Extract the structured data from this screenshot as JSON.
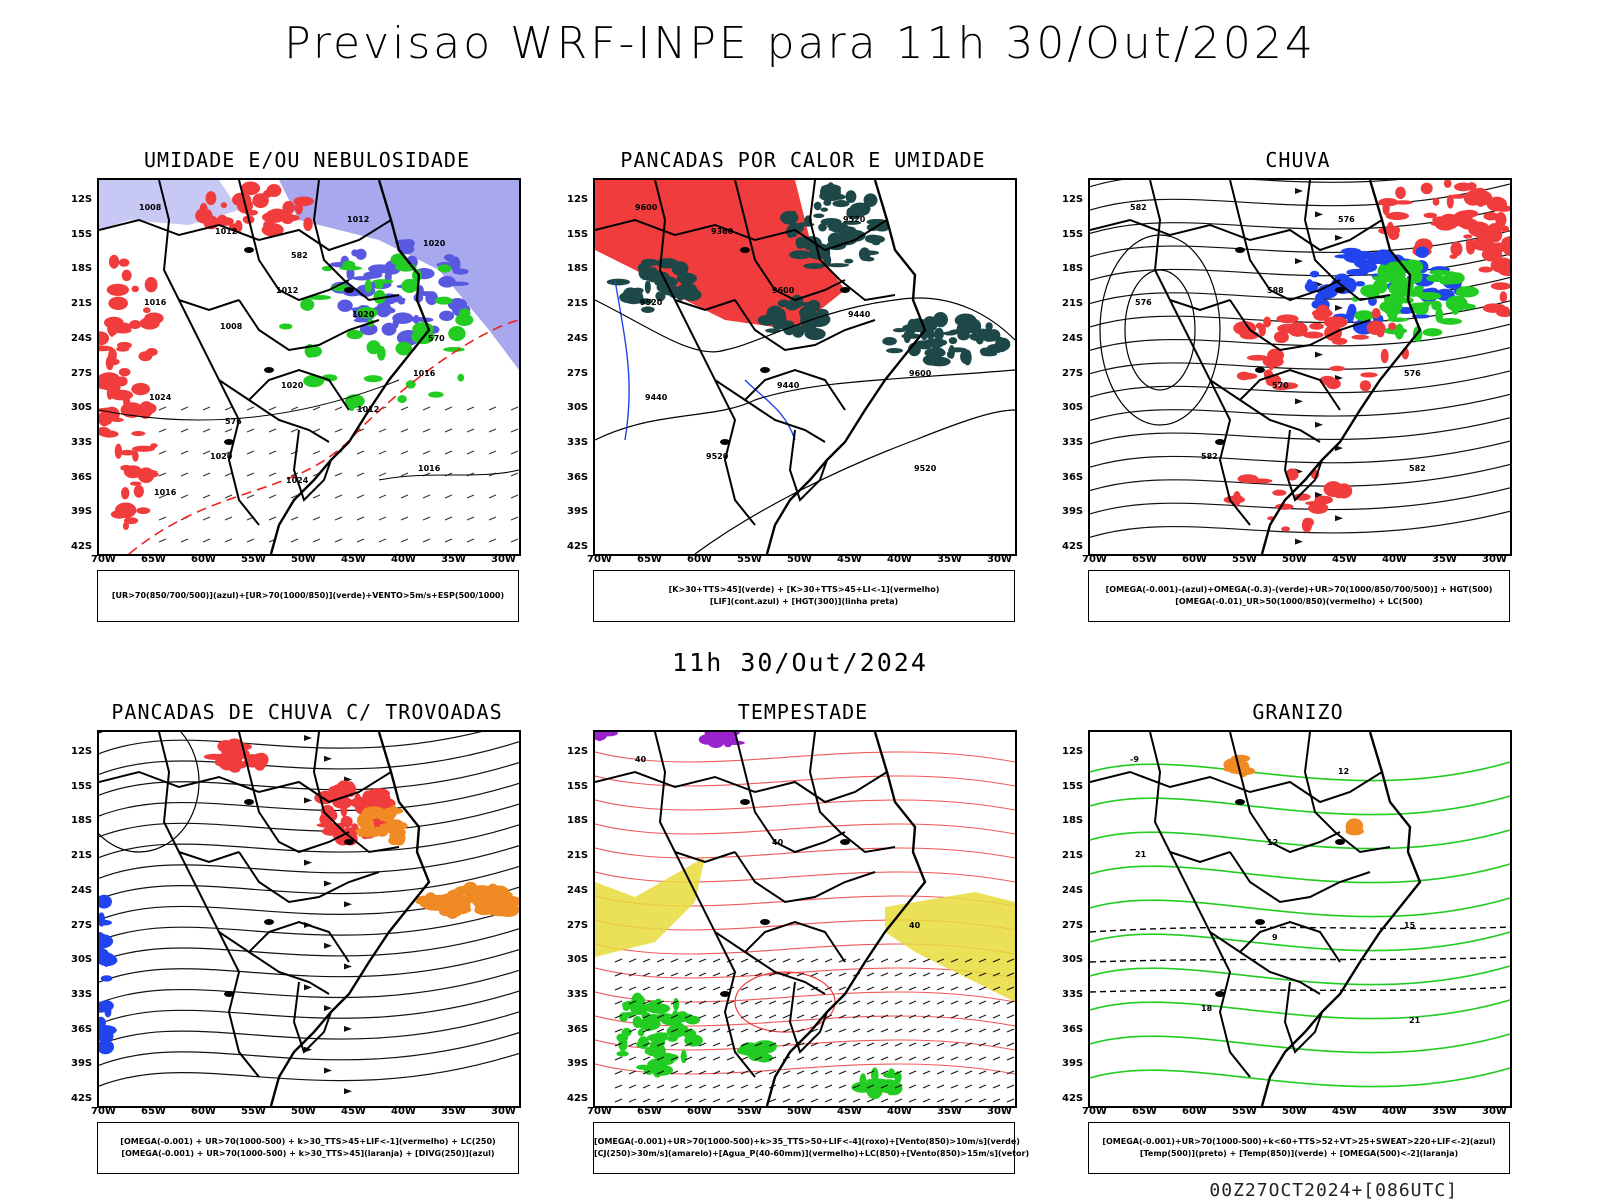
{
  "page": {
    "title": "Previsao WRF-INPE  para 11h 30/Out/2024",
    "mid_title": "11h 30/Out/2024",
    "footer": "00Z27OCT2024+[086UTC]"
  },
  "axes": {
    "lat_labels": [
      "12S",
      "15S",
      "18S",
      "21S",
      "24S",
      "27S",
      "30S",
      "33S",
      "36S",
      "39S",
      "42S"
    ],
    "lon_labels": [
      "70W",
      "65W",
      "60W",
      "55W",
      "50W",
      "45W",
      "40W",
      "35W",
      "30W"
    ]
  },
  "panels": [
    {
      "title": "UMIDADE E/OU NEBULOSIDADE",
      "legend": [
        "[UR>70(850/700/500)](azul)+[UR>70(1000/850)](verde)+VENTO>5m/s+ESP(500/1000)"
      ],
      "labels": [
        "1008",
        "1012",
        "1016",
        "1020",
        "1012",
        "1016",
        "1020",
        "1016",
        "1012",
        "1020",
        "1024",
        "1024",
        "1020",
        "1008",
        "1012",
        "1016",
        "582",
        "570",
        "576"
      ]
    },
    {
      "title": "PANCADAS POR CALOR E UMIDADE",
      "legend": [
        "[K>30+TTS>45](verde) + [K>30+TTS>45+LI<-1](vermelho)",
        "[LIF](cont.azul) + [HGT(300)](linha preta)"
      ],
      "labels": [
        "9600",
        "9600",
        "9600",
        "9520",
        "9520",
        "9520",
        "9440",
        "9520",
        "9360",
        "9440",
        "9440"
      ]
    },
    {
      "title": "CHUVA",
      "legend": [
        "[OMEGA(-0.001)-(azul)+OMEGA(-0.3)-(verde)+UR>70(1000/850/700/500)] + HGT(500)",
        "[OMEGA(-0.01)_UR>50(1000/850)(vermelho) + LC(500)"
      ],
      "labels": [
        "582",
        "588",
        "576",
        "582",
        "576",
        "576",
        "570",
        "582"
      ]
    },
    {
      "title": "PANCADAS DE CHUVA C/ TROVOADAS",
      "legend": [
        "[OMEGA(-0.001) + UR>70(1000-500) + k>30_TTS>45+LIF<-1](vermelho) + LC(250)",
        "[OMEGA(-0.001) + UR>70(1000-500) + k>30_TTS>45](laranja) + [DIVG(250)](azul)"
      ],
      "labels": []
    },
    {
      "title": "TEMPESTADE",
      "legend": [
        "[OMEGA(-0.001)+UR>70(1000-500)+k>35_TTS>50+LIF<-4](roxo)+[Vento(850)>10m/s](verde)",
        "[CJ(250)>30m/s](amarelo)+[Agua_P(40-60mm)](vermelho)+LC(850)+[Vento(850)>15m/s](vetor)"
      ],
      "labels": [
        "40",
        "40",
        "40"
      ]
    },
    {
      "title": "GRANIZO",
      "legend": [
        "[OMEGA(-0.001)+UR>70(1000-500)+k<60+TTS>52+VT>25+SWEAT>220+LIF<-2](azul)",
        "[Temp(500)](preto) + [Temp(850)](verde) + [OMEGA(500)<-2](laranja)"
      ],
      "labels": [
        "-9",
        "12",
        "15",
        "18",
        "12",
        "21",
        "9",
        "21"
      ]
    }
  ],
  "colors": {
    "red": "#f03c3c",
    "green": "#22cc22",
    "blue": "#2244ee",
    "lightblue": "#a8a8ee",
    "darkteal": "#1e4848",
    "orange": "#f08a24",
    "yellow": "#e8dc3c",
    "purple": "#9922cc"
  }
}
